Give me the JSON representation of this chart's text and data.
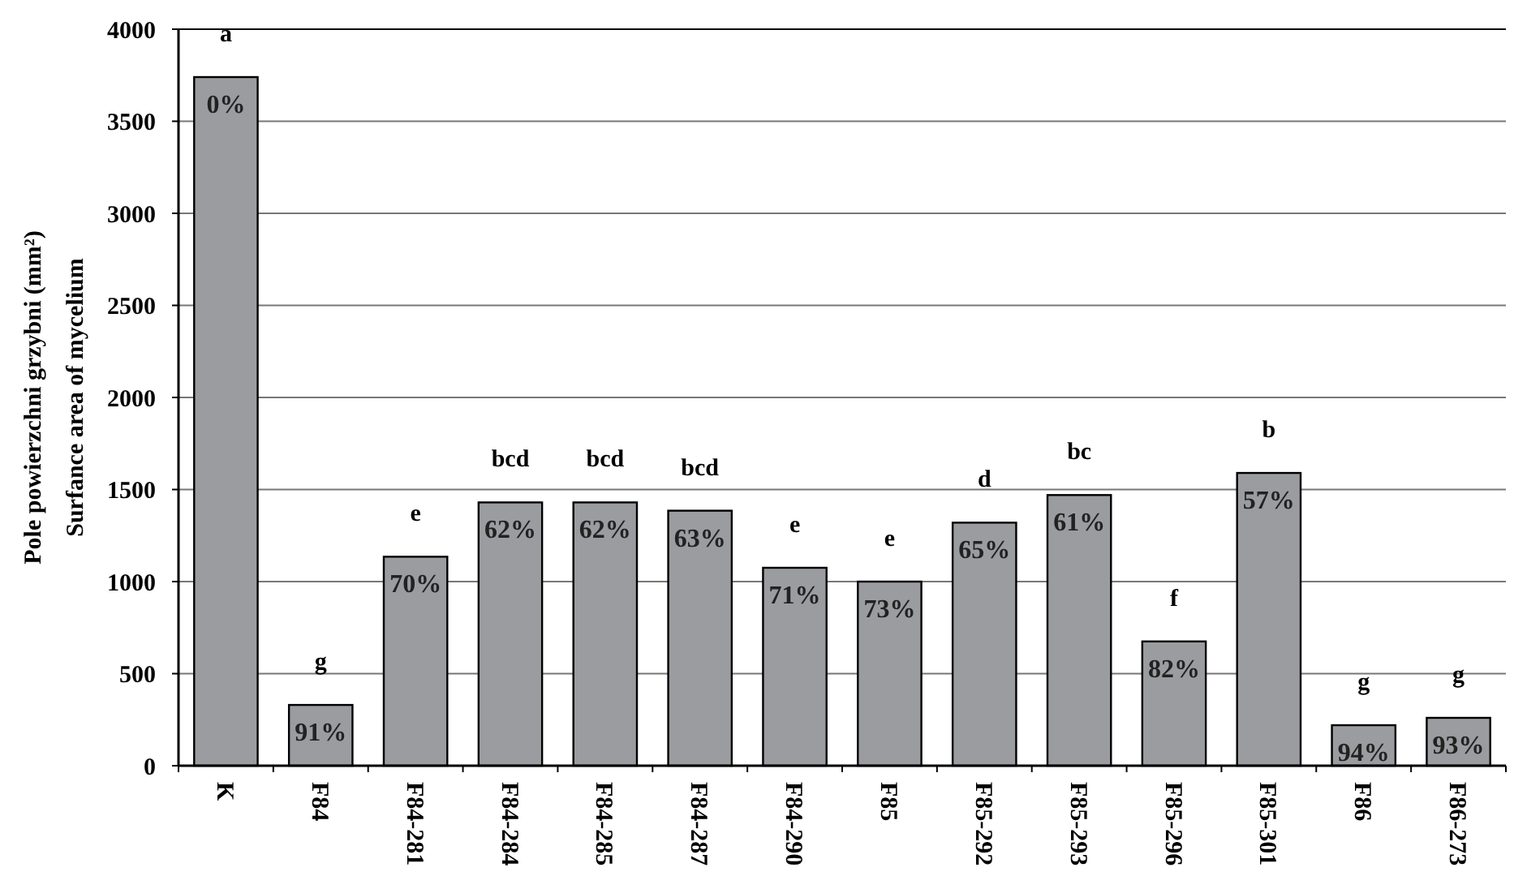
{
  "chart_data": {
    "type": "bar",
    "ylabel": "Pole powierzchni grzybni  (mm²)\nSurfance area of mycelium",
    "categories": [
      "K",
      "F84",
      "F84-281",
      "F84-284",
      "F84-285",
      "F84-287",
      "F84-290",
      "F85",
      "F85-292",
      "F85-293",
      "F85-296",
      "F85-301",
      "F86",
      "F86-273"
    ],
    "values": [
      3740,
      330,
      1135,
      1430,
      1430,
      1385,
      1075,
      1000,
      1320,
      1470,
      675,
      1590,
      220,
      260
    ],
    "color": "#9b9ca0",
    "ylim": [
      0,
      4000
    ],
    "yticks": [
      0,
      500,
      1000,
      1500,
      2000,
      2500,
      3000,
      3500,
      4000
    ],
    "grid": "y",
    "annotations": [
      {
        "text": "a",
        "x": "K",
        "y": 3740
      },
      {
        "text": "g",
        "x": "F84",
        "y": 330
      },
      {
        "text": "e",
        "x": "F84-281",
        "y": 1135
      },
      {
        "text": "bcd",
        "x": "F84-284",
        "y": 1430
      },
      {
        "text": "bcd",
        "x": "F84-285",
        "y": 1430
      },
      {
        "text": "bcd",
        "x": "F84-287",
        "y": 1385
      },
      {
        "text": "e",
        "x": "F84-290",
        "y": 1075
      },
      {
        "text": "e",
        "x": "F85",
        "y": 1000
      },
      {
        "text": "d",
        "x": "F85-292",
        "y": 1320
      },
      {
        "text": "bc",
        "x": "F85-293",
        "y": 1470
      },
      {
        "text": "f",
        "x": "F85-296",
        "y": 675
      },
      {
        "text": "b",
        "x": "F85-301",
        "y": 1590
      },
      {
        "text": "g",
        "x": "F86",
        "y": 220
      },
      {
        "text": "g",
        "x": "F86-273",
        "y": 260
      },
      {
        "text": "0%",
        "x": "K",
        "y": 3740
      },
      {
        "text": "91%",
        "x": "F84",
        "y": 330
      },
      {
        "text": "70%",
        "x": "F84-281",
        "y": 1135
      },
      {
        "text": "62%",
        "x": "F84-284",
        "y": 1430
      },
      {
        "text": "62%",
        "x": "F84-285",
        "y": 1430
      },
      {
        "text": "63%",
        "x": "F84-287",
        "y": 1385
      },
      {
        "text": "71%",
        "x": "F84-290",
        "y": 1075
      },
      {
        "text": "73%",
        "x": "F85",
        "y": 1000
      },
      {
        "text": "65%",
        "x": "F85-292",
        "y": 1320
      },
      {
        "text": "61%",
        "x": "F85-293",
        "y": 1470
      },
      {
        "text": "82%",
        "x": "F85-296",
        "y": 675
      },
      {
        "text": "57%",
        "x": "F85-301",
        "y": 1590
      },
      {
        "text": "94%",
        "x": "F86",
        "y": 220
      },
      {
        "text": "93%",
        "x": "F86-273",
        "y": 260
      }
    ]
  }
}
